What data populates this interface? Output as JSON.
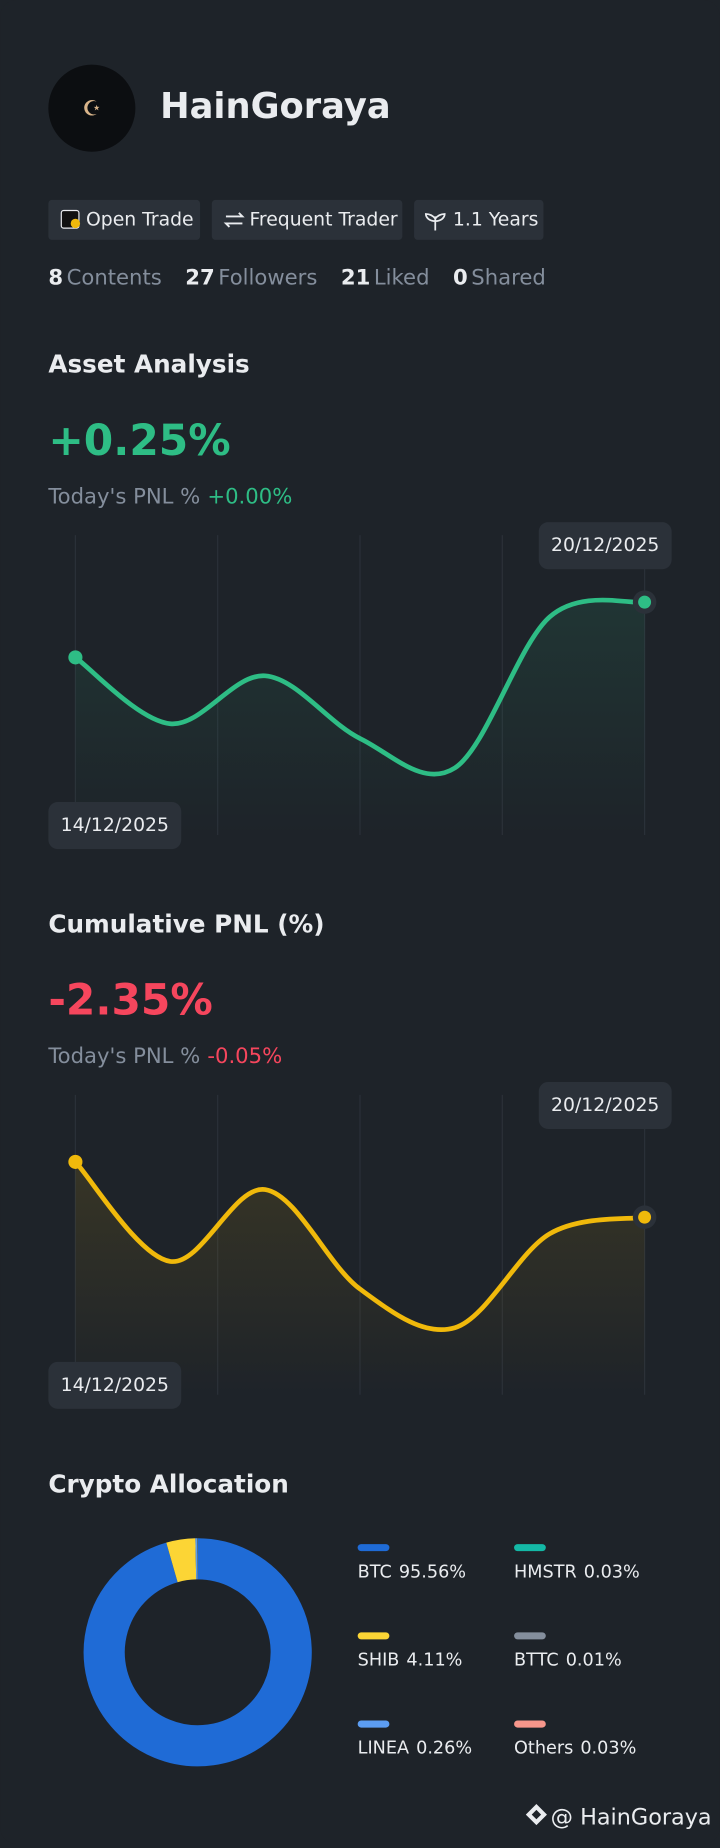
{
  "profile": {
    "name": "HainGoraya",
    "tags": [
      "Open Trade",
      "Frequent Trader",
      "1.1 Years"
    ],
    "stats": [
      {
        "count": "8",
        "label": "Contents"
      },
      {
        "count": "27",
        "label": "Followers"
      },
      {
        "count": "21",
        "label": "Liked"
      },
      {
        "count": "0",
        "label": "Shared"
      }
    ]
  },
  "chart_data": [
    {
      "type": "line",
      "title": "Asset Analysis",
      "headline": "+0.25%",
      "headline_color": "#2ebd85",
      "today_label": "Today's PNL %",
      "today_value": "+0.00%",
      "categories": [
        "14/12/2025",
        null,
        null,
        null,
        null,
        null,
        "20/12/2025"
      ],
      "values": [
        0.1,
        -0.08,
        0.05,
        -0.12,
        -0.2,
        0.21,
        0.25
      ],
      "color": "#2ebd85",
      "grid": true
    },
    {
      "type": "line",
      "title": "Cumulative PNL (%)",
      "headline": "-2.35%",
      "headline_color": "#f6465d",
      "today_label": "Today's PNL %",
      "today_value": "-0.05%",
      "categories": [
        "14/12/2025",
        null,
        null,
        null,
        null,
        null,
        "20/12/2025"
      ],
      "values": [
        -2.25,
        -2.43,
        -2.3,
        -2.48,
        -2.55,
        -2.38,
        -2.35
      ],
      "color": "#f0b90b",
      "grid": true
    },
    {
      "type": "donut",
      "title": "Crypto Allocation",
      "categories": [
        "BTC",
        "SHIB",
        "LINEA",
        "HMSTR",
        "BTTC",
        "Others"
      ],
      "values": [
        95.56,
        4.11,
        0.26,
        0.03,
        0.01,
        0.03
      ],
      "value_labels": [
        "95.56%",
        "4.11%",
        "0.26%",
        "0.03%",
        "0.01%",
        "0.03%"
      ],
      "colors": [
        "#1f6bd6",
        "#fcd535",
        "#5c9df2",
        "#14b8a6",
        "#848e9c",
        "#f7968b"
      ]
    }
  ],
  "footer": "@ HainGoraya"
}
